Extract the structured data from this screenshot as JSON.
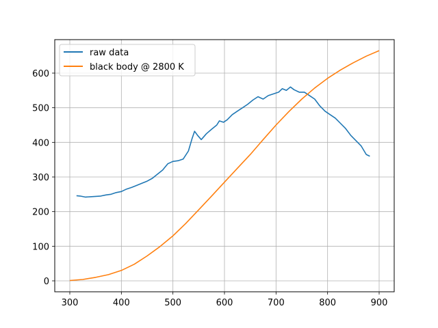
{
  "chart_data": {
    "type": "line",
    "title": "",
    "xlabel": "",
    "ylabel": "",
    "xlim": [
      272,
      928
    ],
    "ylim": [
      -33,
      693
    ],
    "grid": true,
    "legend_position": "upper left",
    "x_ticks": [
      300,
      400,
      500,
      600,
      700,
      800,
      900
    ],
    "y_ticks": [
      0,
      100,
      200,
      300,
      400,
      500,
      600
    ],
    "series": [
      {
        "name": "raw data",
        "color": "#1f77b4",
        "x": [
          313,
          320,
          330,
          340,
          350,
          360,
          370,
          380,
          390,
          400,
          410,
          420,
          430,
          440,
          450,
          460,
          470,
          480,
          490,
          500,
          510,
          520,
          530,
          537,
          542,
          548,
          555,
          565,
          575,
          585,
          590,
          598,
          605,
          615,
          625,
          635,
          645,
          655,
          665,
          675,
          685,
          695,
          705,
          712,
          720,
          728,
          735,
          745,
          755,
          765,
          775,
          785,
          795,
          805,
          815,
          825,
          835,
          845,
          855,
          865,
          875,
          882
        ],
        "values": [
          246,
          245,
          242,
          243,
          244,
          245,
          248,
          250,
          255,
          258,
          265,
          270,
          276,
          282,
          288,
          296,
          308,
          320,
          338,
          345,
          347,
          352,
          375,
          410,
          432,
          420,
          408,
          425,
          438,
          450,
          462,
          458,
          465,
          480,
          490,
          500,
          510,
          522,
          532,
          525,
          535,
          540,
          545,
          555,
          550,
          560,
          552,
          545,
          545,
          535,
          525,
          505,
          490,
          480,
          470,
          455,
          440,
          420,
          405,
          390,
          365,
          360
        ]
      },
      {
        "name": "black body @ 2800 K",
        "color": "#ff7f0e",
        "x": [
          300,
          325,
          350,
          375,
          400,
          425,
          450,
          475,
          500,
          525,
          550,
          575,
          600,
          625,
          650,
          675,
          700,
          725,
          750,
          775,
          800,
          825,
          850,
          875,
          900
        ],
        "values": [
          1,
          4,
          10,
          18,
          30,
          48,
          72,
          99,
          130,
          166,
          205,
          245,
          285,
          325,
          365,
          408,
          450,
          489,
          525,
          557,
          585,
          609,
          630,
          649,
          665
        ]
      }
    ]
  },
  "legend": {
    "items": [
      {
        "label": "raw data",
        "color": "#1f77b4"
      },
      {
        "label": "black body @ 2800 K",
        "color": "#ff7f0e"
      }
    ]
  }
}
